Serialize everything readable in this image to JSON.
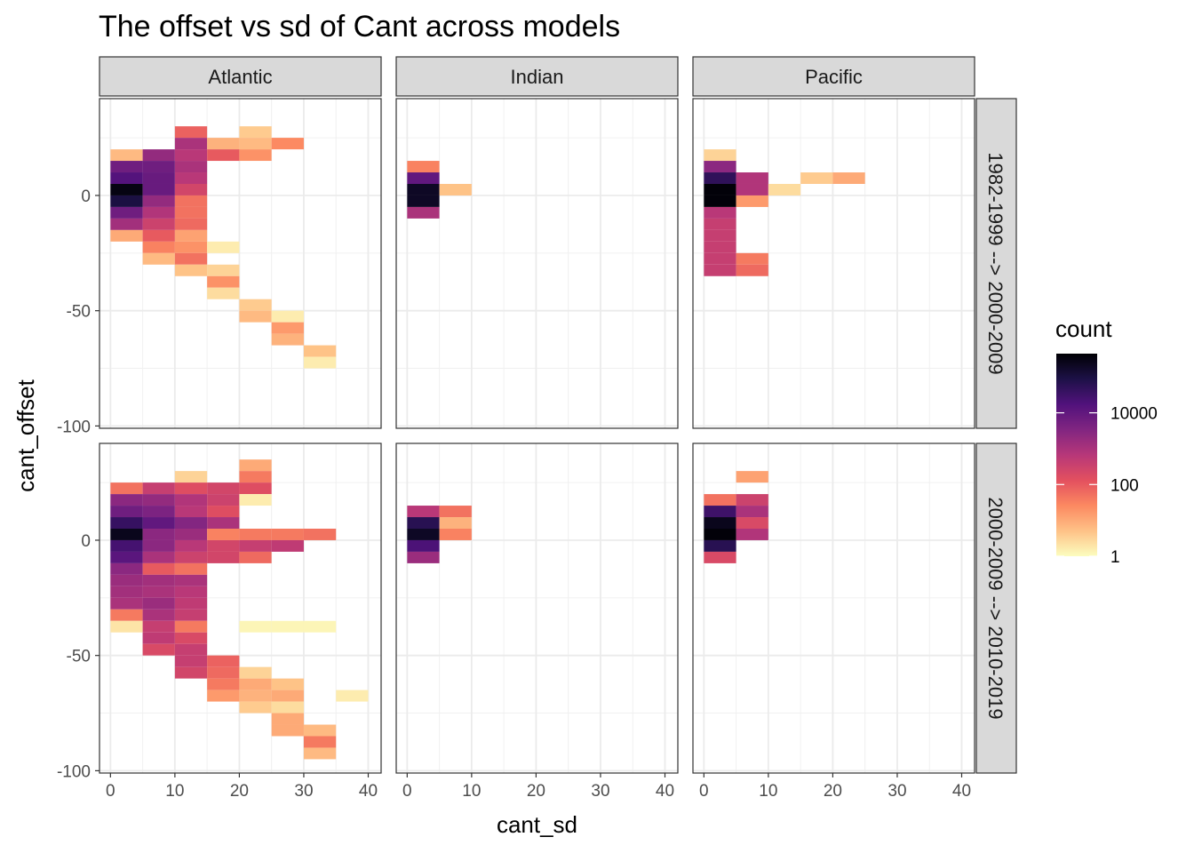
{
  "chart_data": {
    "type": "heatmap",
    "title": "The offset vs sd of Cant across models",
    "xlabel": "cant_sd",
    "ylabel": "cant_offset",
    "x_ticks": [
      0,
      10,
      20,
      30,
      40
    ],
    "y_ticks": [
      0,
      -50,
      -100
    ],
    "xlim": [
      -1.7,
      42
    ],
    "ylim": [
      -101,
      42
    ],
    "bin_width_x": 5,
    "bin_height_y": 5,
    "columns": [
      "Atlantic",
      "Indian",
      "Pacific"
    ],
    "rows": [
      "1982-1999 --> 2000-2009",
      "2000-2009 --> 2010-2019"
    ],
    "legend": {
      "title": "count",
      "scale": "log10",
      "min": 0,
      "max": 5.65,
      "tick_labels": [
        "1",
        "100",
        "10000"
      ],
      "tick_values": [
        0,
        2,
        4
      ],
      "colors": [
        "#fcfdbf",
        "#fec287",
        "#fc8961",
        "#e3505f",
        "#b73779",
        "#812581",
        "#51127c",
        "#1d1147",
        "#000004"
      ]
    },
    "panels": [
      {
        "row": 0,
        "col": 0,
        "cells": [
          [
            10,
            25,
            1.9
          ],
          [
            20,
            25,
            0.6
          ],
          [
            10,
            20,
            3.0
          ],
          [
            15,
            20,
            0.9
          ],
          [
            20,
            20,
            0.8
          ],
          [
            25,
            20,
            1.4
          ],
          [
            0,
            15,
            0.8
          ],
          [
            5,
            15,
            3.3
          ],
          [
            10,
            15,
            2.8
          ],
          [
            15,
            15,
            2.0
          ],
          [
            20,
            15,
            1.3
          ],
          [
            0,
            10,
            3.8
          ],
          [
            5,
            10,
            3.8
          ],
          [
            10,
            10,
            3.0
          ],
          [
            0,
            5,
            4.2
          ],
          [
            5,
            5,
            3.9
          ],
          [
            10,
            5,
            2.8
          ],
          [
            0,
            0,
            5.5
          ],
          [
            5,
            0,
            3.9
          ],
          [
            10,
            0,
            2.4
          ],
          [
            0,
            -5,
            5.0
          ],
          [
            5,
            -5,
            3.3
          ],
          [
            10,
            -5,
            1.7
          ],
          [
            0,
            -10,
            3.8
          ],
          [
            5,
            -10,
            2.9
          ],
          [
            10,
            -10,
            1.7
          ],
          [
            0,
            -15,
            3.1
          ],
          [
            5,
            -15,
            2.5
          ],
          [
            10,
            -15,
            1.8
          ],
          [
            0,
            -20,
            1.0
          ],
          [
            5,
            -20,
            2.0
          ],
          [
            10,
            -20,
            1.1
          ],
          [
            5,
            -25,
            1.5
          ],
          [
            10,
            -25,
            1.3
          ],
          [
            15,
            -25,
            0.2
          ],
          [
            5,
            -30,
            0.8
          ],
          [
            10,
            -30,
            1.7
          ],
          [
            10,
            -35,
            0.7
          ],
          [
            15,
            -35,
            0.5
          ],
          [
            15,
            -40,
            1.3
          ],
          [
            15,
            -45,
            0.4
          ],
          [
            20,
            -50,
            0.6
          ],
          [
            20,
            -55,
            0.8
          ],
          [
            25,
            -55,
            0.2
          ],
          [
            25,
            -60,
            1.2
          ],
          [
            25,
            -65,
            0.9
          ],
          [
            30,
            -70,
            0.7
          ],
          [
            30,
            -75,
            0.2
          ]
        ]
      },
      {
        "row": 0,
        "col": 1,
        "cells": [
          [
            0,
            10,
            1.5
          ],
          [
            0,
            5,
            4.0
          ],
          [
            0,
            0,
            5.3
          ],
          [
            5,
            0,
            0.7
          ],
          [
            0,
            -5,
            5.3
          ],
          [
            0,
            -10,
            3.0
          ]
        ]
      },
      {
        "row": 0,
        "col": 2,
        "cells": [
          [
            0,
            15,
            0.5
          ],
          [
            0,
            10,
            3.4
          ],
          [
            15,
            5,
            0.6
          ],
          [
            20,
            5,
            1.0
          ],
          [
            0,
            5,
            4.7
          ],
          [
            5,
            5,
            2.9
          ],
          [
            0,
            0,
            5.6
          ],
          [
            5,
            0,
            2.9
          ],
          [
            10,
            0,
            0.4
          ],
          [
            0,
            -5,
            5.6
          ],
          [
            5,
            -5,
            1.2
          ],
          [
            0,
            -10,
            2.8
          ],
          [
            0,
            -15,
            2.6
          ],
          [
            0,
            -20,
            2.6
          ],
          [
            0,
            -25,
            2.6
          ],
          [
            0,
            -30,
            2.6
          ],
          [
            5,
            -30,
            1.6
          ],
          [
            0,
            -35,
            2.6
          ],
          [
            5,
            -35,
            1.8
          ]
        ]
      },
      {
        "row": 1,
        "col": 0,
        "cells": [
          [
            20,
            30,
            1.0
          ],
          [
            10,
            25,
            0.5
          ],
          [
            20,
            25,
            1.6
          ],
          [
            0,
            20,
            1.7
          ],
          [
            5,
            20,
            2.6
          ],
          [
            10,
            20,
            2.2
          ],
          [
            15,
            20,
            2.4
          ],
          [
            20,
            20,
            2.2
          ],
          [
            0,
            15,
            3.4
          ],
          [
            5,
            15,
            3.3
          ],
          [
            10,
            15,
            2.9
          ],
          [
            15,
            15,
            2.5
          ],
          [
            20,
            15,
            0.2
          ],
          [
            0,
            10,
            3.8
          ],
          [
            5,
            10,
            3.6
          ],
          [
            10,
            10,
            2.8
          ],
          [
            15,
            10,
            2.2
          ],
          [
            0,
            5,
            4.6
          ],
          [
            5,
            5,
            4.0
          ],
          [
            10,
            5,
            3.5
          ],
          [
            15,
            5,
            3.0
          ],
          [
            0,
            0,
            5.4
          ],
          [
            5,
            0,
            3.4
          ],
          [
            10,
            0,
            3.2
          ],
          [
            15,
            0,
            1.5
          ],
          [
            20,
            0,
            1.6
          ],
          [
            25,
            0,
            1.6
          ],
          [
            30,
            0,
            1.7
          ],
          [
            0,
            -5,
            4.4
          ],
          [
            5,
            -5,
            3.4
          ],
          [
            10,
            -5,
            2.8
          ],
          [
            15,
            -5,
            2.4
          ],
          [
            20,
            -5,
            2.6
          ],
          [
            25,
            -5,
            2.7
          ],
          [
            0,
            -10,
            4.1
          ],
          [
            5,
            -10,
            3.0
          ],
          [
            10,
            -10,
            2.5
          ],
          [
            15,
            -10,
            2.4
          ],
          [
            20,
            -10,
            1.8
          ],
          [
            0,
            -15,
            3.4
          ],
          [
            5,
            -15,
            2.0
          ],
          [
            10,
            -15,
            1.7
          ],
          [
            0,
            -20,
            3.2
          ],
          [
            5,
            -20,
            3.1
          ],
          [
            10,
            -20,
            3.0
          ],
          [
            0,
            -25,
            3.1
          ],
          [
            5,
            -25,
            3.0
          ],
          [
            10,
            -25,
            2.8
          ],
          [
            0,
            -30,
            3.0
          ],
          [
            5,
            -30,
            3.2
          ],
          [
            10,
            -30,
            2.7
          ],
          [
            0,
            -35,
            1.6
          ],
          [
            5,
            -35,
            3.0
          ],
          [
            10,
            -35,
            2.6
          ],
          [
            0,
            -40,
            0.3
          ],
          [
            5,
            -40,
            2.6
          ],
          [
            10,
            -40,
            1.6
          ],
          [
            20,
            -40,
            0.1
          ],
          [
            25,
            -40,
            0.1
          ],
          [
            30,
            -40,
            0.1
          ],
          [
            5,
            -45,
            2.7
          ],
          [
            10,
            -45,
            2.3
          ],
          [
            5,
            -50,
            2.3
          ],
          [
            10,
            -50,
            2.6
          ],
          [
            10,
            -55,
            2.6
          ],
          [
            15,
            -55,
            1.9
          ],
          [
            10,
            -60,
            2.4
          ],
          [
            15,
            -60,
            1.8
          ],
          [
            20,
            -60,
            0.5
          ],
          [
            15,
            -65,
            1.6
          ],
          [
            20,
            -65,
            1.0
          ],
          [
            25,
            -65,
            0.7
          ],
          [
            15,
            -70,
            1.2
          ],
          [
            20,
            -70,
            0.9
          ],
          [
            25,
            -70,
            1.0
          ],
          [
            35,
            -70,
            0.2
          ],
          [
            20,
            -75,
            0.6
          ],
          [
            25,
            -75,
            0.4
          ],
          [
            25,
            -80,
            1.0
          ],
          [
            25,
            -85,
            1.0
          ],
          [
            30,
            -85,
            0.8
          ],
          [
            30,
            -90,
            1.6
          ],
          [
            30,
            -95,
            0.8
          ]
        ]
      },
      {
        "row": 1,
        "col": 1,
        "cells": [
          [
            0,
            10,
            2.8
          ],
          [
            5,
            10,
            1.7
          ],
          [
            0,
            5,
            4.8
          ],
          [
            5,
            5,
            0.9
          ],
          [
            0,
            0,
            5.3
          ],
          [
            5,
            0,
            1.5
          ],
          [
            0,
            -5,
            4.3
          ],
          [
            0,
            -10,
            3.2
          ]
        ]
      },
      {
        "row": 1,
        "col": 2,
        "cells": [
          [
            5,
            25,
            1.1
          ],
          [
            0,
            15,
            1.7
          ],
          [
            5,
            15,
            2.5
          ],
          [
            0,
            10,
            4.5
          ],
          [
            5,
            10,
            3.0
          ],
          [
            0,
            5,
            5.4
          ],
          [
            5,
            5,
            2.3
          ],
          [
            0,
            0,
            5.6
          ],
          [
            5,
            0,
            2.9
          ],
          [
            0,
            -5,
            4.8
          ],
          [
            0,
            -10,
            2.3
          ]
        ]
      }
    ]
  }
}
